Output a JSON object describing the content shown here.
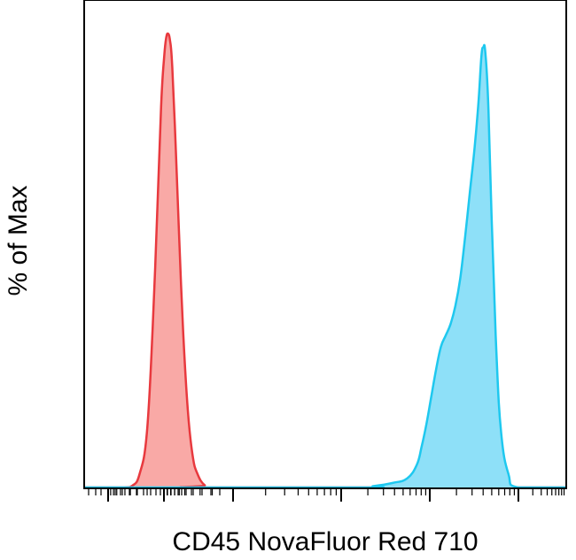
{
  "chart_data": {
    "type": "area",
    "title": "",
    "xlabel": "CD45 NovaFluor Red 710",
    "ylabel": "% of Max",
    "xscale": "biexponential",
    "ylim": [
      0,
      100
    ],
    "grid": false,
    "legend": "none",
    "tick_labels_shown": false,
    "series": [
      {
        "color_line": "#e8393e",
        "color_fill": "#f9a9a6",
        "x": [
          0.0,
          0.08,
          0.1,
          0.115,
          0.13,
          0.142,
          0.152,
          0.16,
          0.166,
          0.17,
          0.174,
          0.178,
          0.182,
          0.188,
          0.196,
          0.205,
          0.215,
          0.225,
          0.235,
          0.25,
          0.27,
          1.0
        ],
        "y": [
          0,
          0,
          0.4,
          3,
          12,
          35,
          62,
          85,
          95,
          99,
          100,
          98.5,
          94,
          80,
          58,
          35,
          17,
          7,
          3,
          0.5,
          0,
          0
        ]
      },
      {
        "color_line": "#1ec8ef",
        "color_fill": "#8ee0f8",
        "x": [
          0.0,
          0.56,
          0.6,
          0.64,
          0.67,
          0.69,
          0.7,
          0.71,
          0.72,
          0.73,
          0.74,
          0.75,
          0.76,
          0.77,
          0.78,
          0.79,
          0.8,
          0.81,
          0.818,
          0.824,
          0.828,
          0.832,
          0.838,
          0.845,
          0.855,
          0.865,
          0.88,
          0.9,
          1.0
        ],
        "y": [
          0,
          0,
          0.3,
          1,
          2,
          5,
          9,
          14,
          20,
          26,
          31,
          33.5,
          36,
          40,
          46,
          55,
          65,
          75,
          85,
          95,
          97,
          96,
          85,
          60,
          30,
          12,
          3,
          0,
          0
        ]
      }
    ]
  }
}
